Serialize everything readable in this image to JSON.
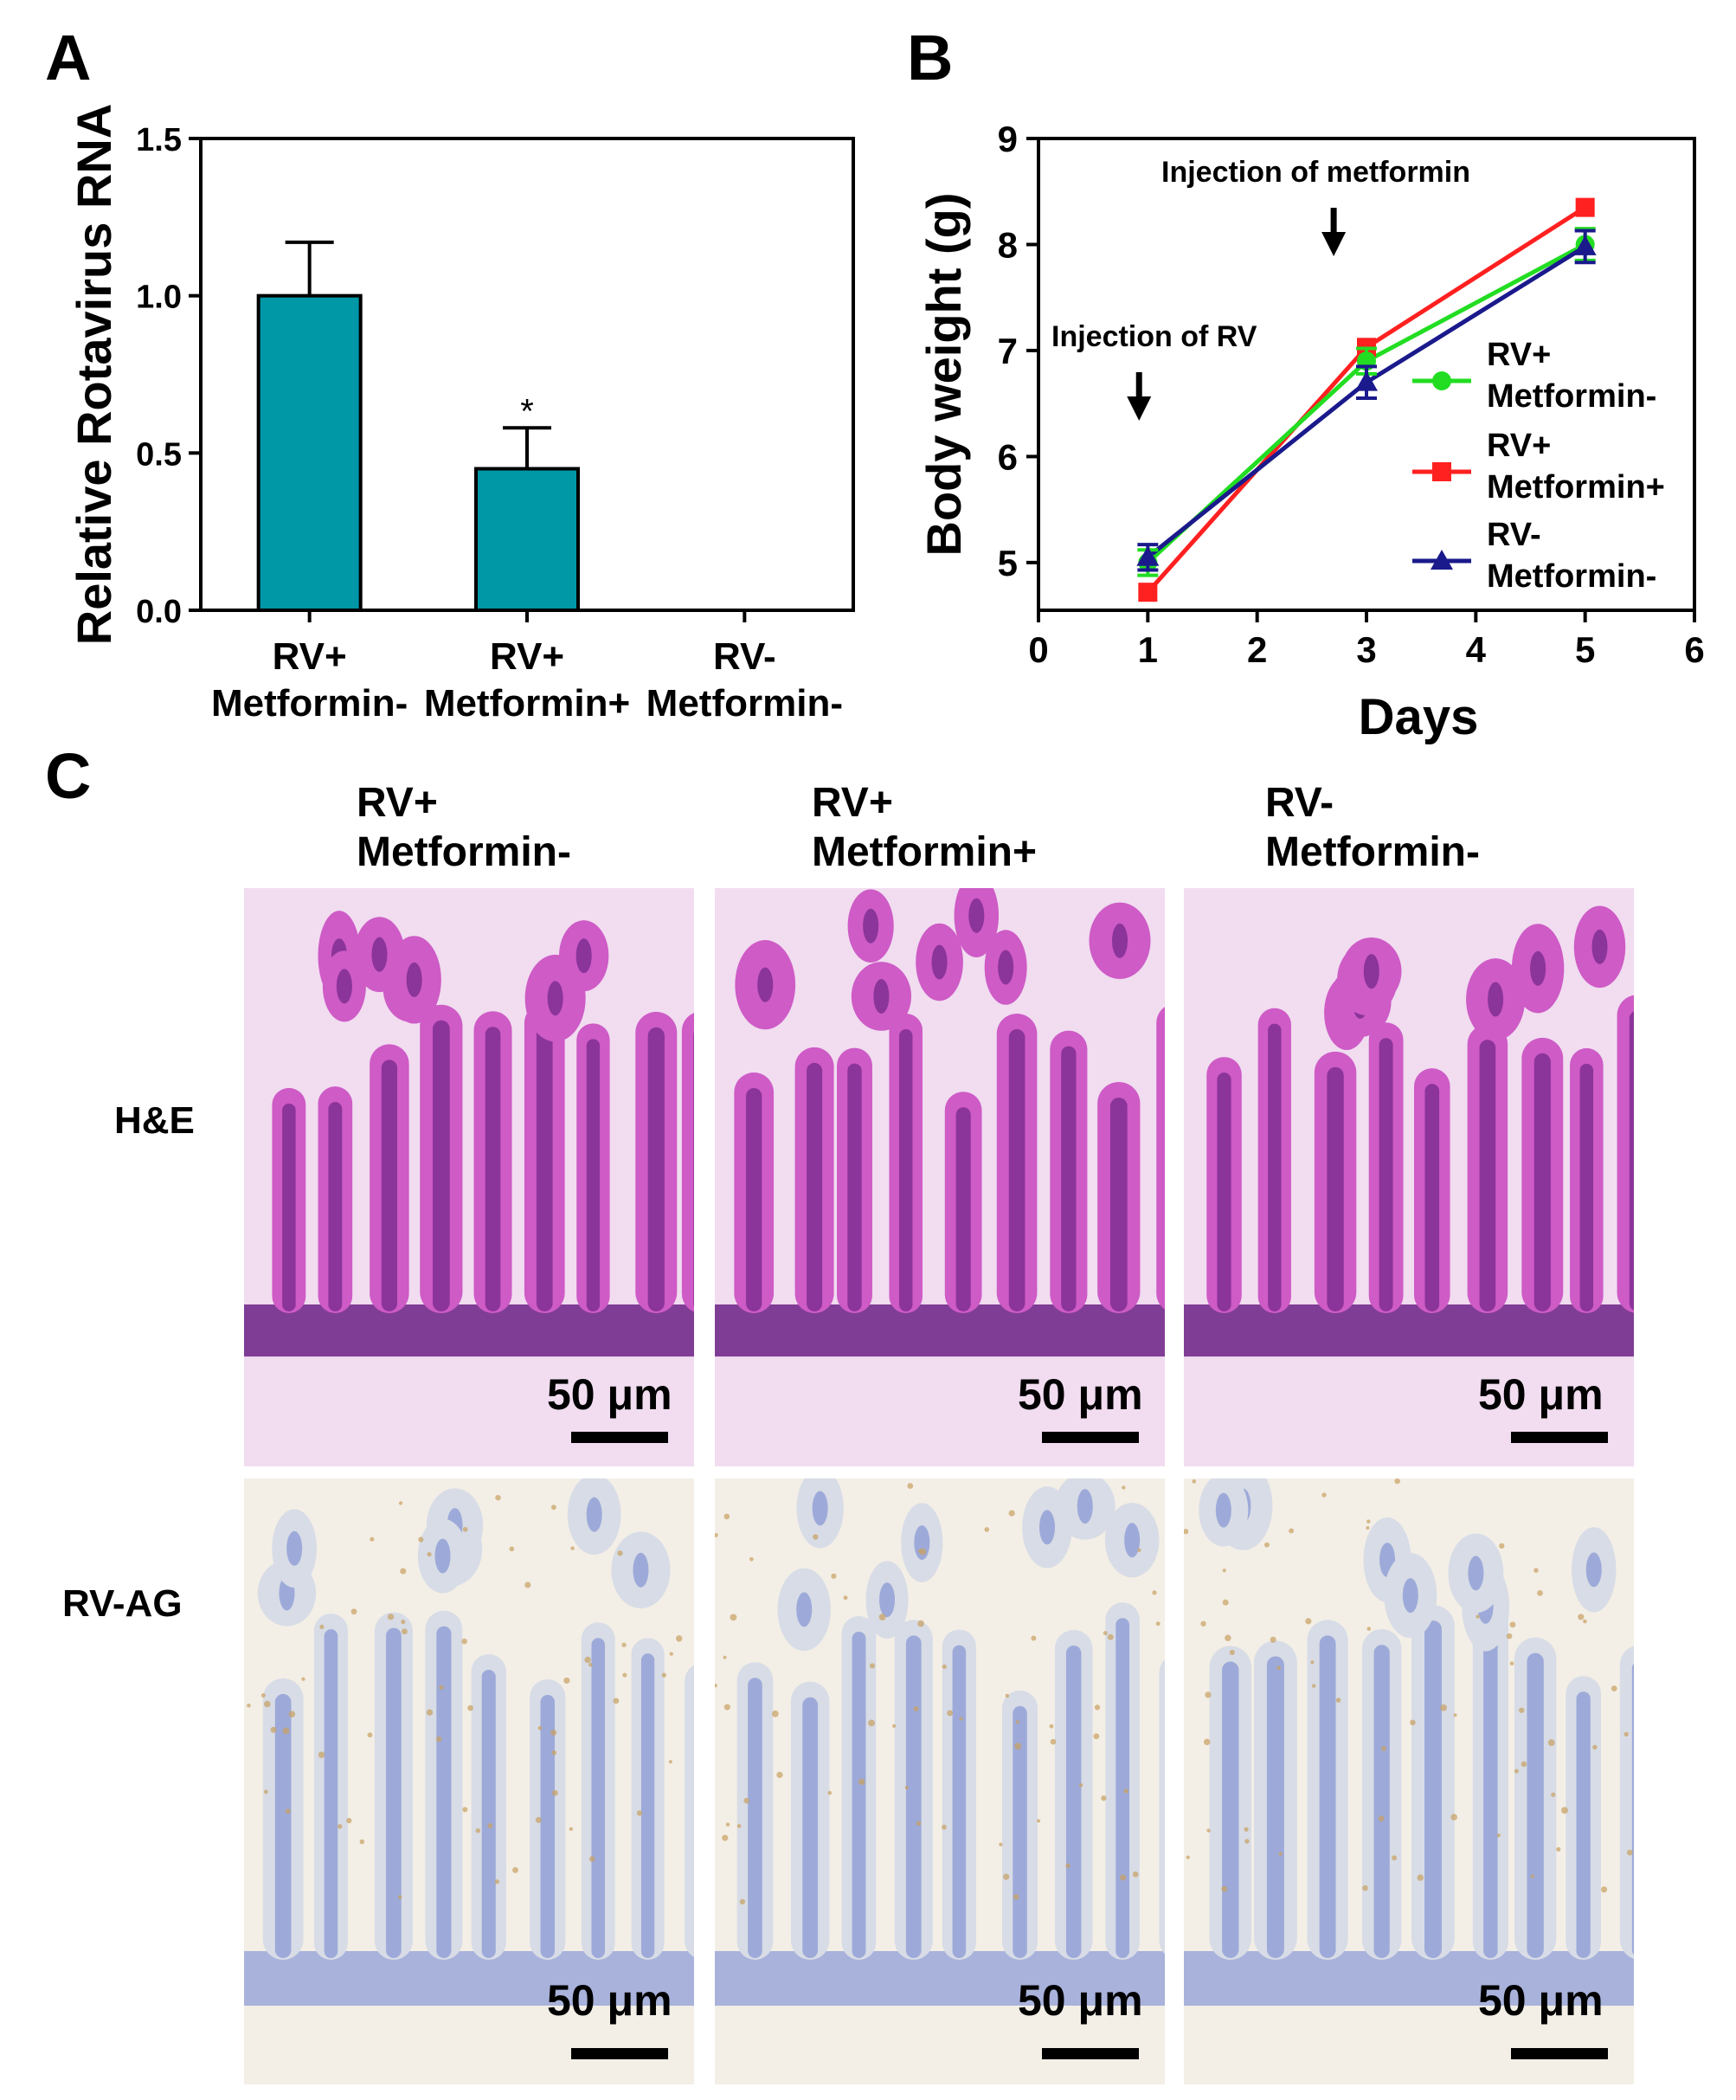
{
  "panels": {
    "a": {
      "letter": "A"
    },
    "b": {
      "letter": "B"
    },
    "c": {
      "letter": "C"
    }
  },
  "chart_data": [
    {
      "type": "bar",
      "panel": "A",
      "ylabel": "Relative Rotavirus RNA",
      "xlabel": "",
      "ylim": [
        0,
        1.5
      ],
      "yticks": [
        "0.0",
        "0.5",
        "1.0",
        "1.5"
      ],
      "categories": [
        "RV+\nMetformin-",
        "RV+\nMetformin+",
        "RV-\nMetformin-"
      ],
      "values": [
        1.0,
        0.45,
        0
      ],
      "errors": [
        0.17,
        0.13,
        0
      ],
      "annotations": [
        "",
        "*",
        ""
      ],
      "bar_color": "#0097A7"
    },
    {
      "type": "line",
      "panel": "B",
      "xlabel": "Days",
      "ylabel": "Body weight (g)",
      "xlim": [
        0,
        6
      ],
      "ylim": [
        4.55,
        9
      ],
      "xticks": [
        "0",
        "1",
        "2",
        "3",
        "4",
        "5",
        "6"
      ],
      "yticks": [
        "5",
        "6",
        "7",
        "8",
        "9"
      ],
      "x": [
        1,
        3,
        5
      ],
      "series": [
        {
          "name": "RV+\nMetformin-",
          "values": [
            5.0,
            6.9,
            8.0
          ],
          "errors": [
            0.12,
            0.12,
            0.15
          ],
          "color": "#22DD22",
          "marker": "circle"
        },
        {
          "name": "RV+\nMetformin+",
          "values": [
            4.72,
            7.03,
            8.35
          ],
          "errors": [
            0,
            0,
            0
          ],
          "color": "#FF2020",
          "marker": "square"
        },
        {
          "name": "RV-\nMetformin-",
          "values": [
            5.05,
            6.7,
            7.98
          ],
          "errors": [
            0.12,
            0.15,
            0.15
          ],
          "color": "#1A1A8C",
          "marker": "triangle"
        }
      ],
      "annotations": [
        {
          "text": "Injection of RV",
          "x": 0.92
        },
        {
          "text": "Injection of metformin",
          "x": 2.7
        }
      ]
    }
  ],
  "micrographs": {
    "columns": [
      "RV+\nMetformin-",
      "RV+\nMetformin+",
      "RV-\nMetformin-"
    ],
    "rows": [
      "H&E",
      "RV-AG"
    ],
    "scale_label": "50 μm"
  }
}
